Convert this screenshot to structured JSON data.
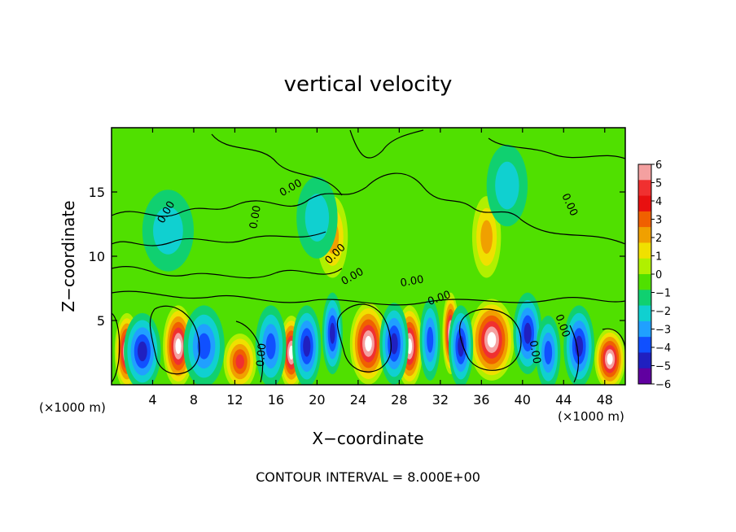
{
  "chart_data": {
    "type": "heatmap",
    "title": "vertical velocity",
    "xlabel": "X−coordinate",
    "ylabel": "Z−coordinate",
    "x_unit": "(×1000 m)",
    "z_unit": "(×1000 m)",
    "xlim": [
      0,
      50
    ],
    "ylim": [
      0,
      20
    ],
    "x_ticks": [
      4,
      8,
      12,
      16,
      20,
      24,
      28,
      32,
      36,
      40,
      44,
      48
    ],
    "y_ticks": [
      5,
      10,
      15
    ],
    "colorbar": {
      "ticks": [
        "6",
        "5",
        "4",
        "3",
        "2",
        "1",
        "0",
        "−1",
        "−2",
        "−3",
        "−4",
        "−5",
        "−6"
      ],
      "colors": [
        "#f4a0a0",
        "#f03030",
        "#e81010",
        "#f06000",
        "#f0a000",
        "#f0e000",
        "#b0f000",
        "#50e000",
        "#10d070",
        "#10d0d0",
        "#20a0ff",
        "#1050ff",
        "#2020c0",
        "#6000a0"
      ]
    },
    "contour_labels": [
      {
        "text": "0.00",
        "x": 5.6,
        "z": 13.3,
        "rot": -60
      },
      {
        "text": "0.00",
        "x": 14.3,
        "z": 13.0,
        "rot": -80
      },
      {
        "text": "0.00",
        "x": 17.6,
        "z": 15.1,
        "rot": -30
      },
      {
        "text": "0.00",
        "x": 22.0,
        "z": 10.0,
        "rot": -45
      },
      {
        "text": "0.00",
        "x": 23.6,
        "z": 8.2,
        "rot": -30
      },
      {
        "text": "0.00",
        "x": 29.3,
        "z": 7.8,
        "rot": -10
      },
      {
        "text": "0.00",
        "x": 32.0,
        "z": 6.5,
        "rot": -20
      },
      {
        "text": "0.00",
        "x": 44.3,
        "z": 13.9,
        "rot": 65
      },
      {
        "text": "0.00",
        "x": 14.9,
        "z": 2.3,
        "rot": -85
      },
      {
        "text": "0.00",
        "x": 40.9,
        "z": 2.5,
        "rot": 80
      },
      {
        "text": "0.00",
        "x": 43.6,
        "z": 4.5,
        "rot": 70
      }
    ],
    "cells": [
      {
        "x": 1.5,
        "z": 2.6,
        "w": 1.2,
        "v": 6
      },
      {
        "x": 6.5,
        "z": 3.0,
        "w": 1.5,
        "v": 6
      },
      {
        "x": 12.5,
        "z": 1.8,
        "w": 1.6,
        "v": 4
      },
      {
        "x": 17.5,
        "z": 2.5,
        "w": 1.2,
        "v": 6
      },
      {
        "x": 25.0,
        "z": 3.2,
        "w": 1.8,
        "v": 6
      },
      {
        "x": 29.0,
        "z": 3.0,
        "w": 1.3,
        "v": 6
      },
      {
        "x": 33.0,
        "z": 4.0,
        "w": 0.8,
        "v": 6
      },
      {
        "x": 37.0,
        "z": 3.5,
        "w": 2.2,
        "v": 6
      },
      {
        "x": 45.5,
        "z": 1.8,
        "w": 0.9,
        "v": 6
      },
      {
        "x": 48.5,
        "z": 2.0,
        "w": 1.5,
        "v": 6
      },
      {
        "x": 3.0,
        "z": 2.6,
        "w": 1.8,
        "v": -4
      },
      {
        "x": 9.0,
        "z": 3.0,
        "w": 2.0,
        "v": -3
      },
      {
        "x": 15.5,
        "z": 3.0,
        "w": 1.5,
        "v": -3
      },
      {
        "x": 19.0,
        "z": 3.0,
        "w": 1.4,
        "v": -4
      },
      {
        "x": 21.5,
        "z": 4.0,
        "w": 1.0,
        "v": -4
      },
      {
        "x": 27.5,
        "z": 3.2,
        "w": 1.4,
        "v": -4
      },
      {
        "x": 31.0,
        "z": 3.5,
        "w": 1.0,
        "v": -3
      },
      {
        "x": 34.0,
        "z": 3.0,
        "w": 1.2,
        "v": -4
      },
      {
        "x": 40.5,
        "z": 4.0,
        "w": 1.4,
        "v": -4
      },
      {
        "x": 42.5,
        "z": 2.5,
        "w": 1.2,
        "v": -3
      },
      {
        "x": 45.5,
        "z": 3.0,
        "w": 1.5,
        "v": -4
      },
      {
        "x": 21.5,
        "z": 11.5,
        "w": 1.5,
        "v": 2
      },
      {
        "x": 36.5,
        "z": 11.5,
        "w": 1.4,
        "v": 2
      },
      {
        "x": 5.5,
        "z": 12.0,
        "w": 2.5,
        "v": -1
      },
      {
        "x": 20.0,
        "z": 13.0,
        "w": 2.0,
        "v": -1
      },
      {
        "x": 38.5,
        "z": 15.5,
        "w": 2.0,
        "v": -1
      }
    ]
  },
  "footer": {
    "contour_interval": "CONTOUR INTERVAL = 8.000E+00"
  }
}
